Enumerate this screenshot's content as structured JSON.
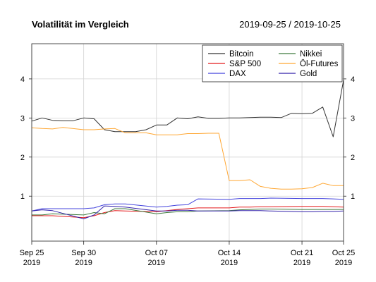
{
  "chart_data": {
    "type": "line",
    "title": "Volatilität im Vergleich",
    "subtitle": "2019-09-25 / 2019-10-25",
    "xlabel": "",
    "ylabel": "",
    "x_range": [
      "2019-09-25",
      "2019-10-25"
    ],
    "ylim": [
      -0.15,
      4.9
    ],
    "y_ticks": [
      1,
      2,
      3,
      4
    ],
    "x_ticks": [
      {
        "date": "2019-09-25",
        "label_line1": "Sep 25",
        "label_line2": "2019"
      },
      {
        "date": "2019-09-30",
        "label_line1": "Sep 30",
        "label_line2": "2019"
      },
      {
        "date": "2019-10-07",
        "label_line1": "Oct 07",
        "label_line2": "2019"
      },
      {
        "date": "2019-10-14",
        "label_line1": "Oct 14",
        "label_line2": "2019"
      },
      {
        "date": "2019-10-21",
        "label_line1": "Oct 21",
        "label_line2": "2019"
      },
      {
        "date": "2019-10-25",
        "label_line1": "Oct 25",
        "label_line2": "2019"
      }
    ],
    "grid": true,
    "legend_position": "top-right",
    "series": [
      {
        "name": "Bitcoin",
        "color": "#333333",
        "points": [
          [
            "2019-09-25",
            2.92
          ],
          [
            "2019-09-26",
            3.0
          ],
          [
            "2019-09-27",
            2.94
          ],
          [
            "2019-09-28",
            2.93
          ],
          [
            "2019-09-29",
            2.93
          ],
          [
            "2019-09-30",
            3.0
          ],
          [
            "2019-10-01",
            2.98
          ],
          [
            "2019-10-02",
            2.7
          ],
          [
            "2019-10-03",
            2.65
          ],
          [
            "2019-10-04",
            2.65
          ],
          [
            "2019-10-05",
            2.65
          ],
          [
            "2019-10-06",
            2.7
          ],
          [
            "2019-10-07",
            2.82
          ],
          [
            "2019-10-08",
            2.82
          ],
          [
            "2019-10-09",
            3.0
          ],
          [
            "2019-10-10",
            2.98
          ],
          [
            "2019-10-11",
            3.03
          ],
          [
            "2019-10-12",
            2.99
          ],
          [
            "2019-10-13",
            2.99
          ],
          [
            "2019-10-14",
            3.0
          ],
          [
            "2019-10-15",
            3.0
          ],
          [
            "2019-10-16",
            3.01
          ],
          [
            "2019-10-17",
            3.02
          ],
          [
            "2019-10-18",
            3.02
          ],
          [
            "2019-10-19",
            3.01
          ],
          [
            "2019-10-20",
            3.12
          ],
          [
            "2019-10-21",
            3.11
          ],
          [
            "2019-10-22",
            3.12
          ],
          [
            "2019-10-23",
            3.28
          ],
          [
            "2019-10-24",
            2.52
          ],
          [
            "2019-10-25",
            3.97
          ]
        ]
      },
      {
        "name": "S&P 500",
        "color": "#e41a1c",
        "points": [
          [
            "2019-09-25",
            0.5
          ],
          [
            "2019-09-26",
            0.5
          ],
          [
            "2019-09-27",
            0.5
          ],
          [
            "2019-09-30",
            0.45
          ],
          [
            "2019-10-01",
            0.5
          ],
          [
            "2019-10-02",
            0.58
          ],
          [
            "2019-10-03",
            0.63
          ],
          [
            "2019-10-04",
            0.62
          ],
          [
            "2019-10-07",
            0.6
          ],
          [
            "2019-10-08",
            0.63
          ],
          [
            "2019-10-09",
            0.66
          ],
          [
            "2019-10-10",
            0.68
          ],
          [
            "2019-10-11",
            0.7
          ],
          [
            "2019-10-14",
            0.7
          ],
          [
            "2019-10-15",
            0.72
          ],
          [
            "2019-10-16",
            0.72
          ],
          [
            "2019-10-17",
            0.73
          ],
          [
            "2019-10-18",
            0.73
          ],
          [
            "2019-10-21",
            0.74
          ],
          [
            "2019-10-22",
            0.74
          ],
          [
            "2019-10-23",
            0.74
          ],
          [
            "2019-10-24",
            0.73
          ],
          [
            "2019-10-25",
            0.72
          ]
        ]
      },
      {
        "name": "DAX",
        "color": "#4444dd",
        "points": [
          [
            "2019-09-25",
            0.62
          ],
          [
            "2019-09-26",
            0.68
          ],
          [
            "2019-09-27",
            0.68
          ],
          [
            "2019-09-30",
            0.68
          ],
          [
            "2019-10-01",
            0.7
          ],
          [
            "2019-10-02",
            0.78
          ],
          [
            "2019-10-03",
            0.8
          ],
          [
            "2019-10-04",
            0.8
          ],
          [
            "2019-10-07",
            0.72
          ],
          [
            "2019-10-08",
            0.74
          ],
          [
            "2019-10-09",
            0.77
          ],
          [
            "2019-10-10",
            0.78
          ],
          [
            "2019-10-11",
            0.93
          ],
          [
            "2019-10-14",
            0.92
          ],
          [
            "2019-10-15",
            0.94
          ],
          [
            "2019-10-16",
            0.94
          ],
          [
            "2019-10-17",
            0.94
          ],
          [
            "2019-10-18",
            0.95
          ],
          [
            "2019-10-21",
            0.94
          ],
          [
            "2019-10-22",
            0.94
          ],
          [
            "2019-10-23",
            0.94
          ],
          [
            "2019-10-24",
            0.93
          ],
          [
            "2019-10-25",
            0.92
          ]
        ]
      },
      {
        "name": "Nikkei",
        "color": "#3d7a3d",
        "points": [
          [
            "2019-09-25",
            0.52
          ],
          [
            "2019-09-26",
            0.52
          ],
          [
            "2019-09-27",
            0.55
          ],
          [
            "2019-09-30",
            0.52
          ],
          [
            "2019-10-01",
            0.58
          ],
          [
            "2019-10-02",
            0.55
          ],
          [
            "2019-10-03",
            0.68
          ],
          [
            "2019-10-04",
            0.68
          ],
          [
            "2019-10-07",
            0.55
          ],
          [
            "2019-10-08",
            0.58
          ],
          [
            "2019-10-09",
            0.6
          ],
          [
            "2019-10-10",
            0.6
          ],
          [
            "2019-10-11",
            0.62
          ],
          [
            "2019-10-14",
            0.63
          ],
          [
            "2019-10-15",
            0.65
          ],
          [
            "2019-10-16",
            0.66
          ],
          [
            "2019-10-17",
            0.67
          ],
          [
            "2019-10-18",
            0.67
          ],
          [
            "2019-10-21",
            0.66
          ],
          [
            "2019-10-22",
            0.66
          ],
          [
            "2019-10-23",
            0.66
          ],
          [
            "2019-10-24",
            0.66
          ],
          [
            "2019-10-25",
            0.66
          ]
        ]
      },
      {
        "name": "Öl-Futures",
        "color": "#ffa733",
        "points": [
          [
            "2019-09-25",
            2.75
          ],
          [
            "2019-09-26",
            2.73
          ],
          [
            "2019-09-27",
            2.72
          ],
          [
            "2019-09-28",
            2.76
          ],
          [
            "2019-09-30",
            2.7
          ],
          [
            "2019-10-01",
            2.7
          ],
          [
            "2019-10-02",
            2.72
          ],
          [
            "2019-10-03",
            2.73
          ],
          [
            "2019-10-04",
            2.62
          ],
          [
            "2019-10-05",
            2.62
          ],
          [
            "2019-10-06",
            2.62
          ],
          [
            "2019-10-07",
            2.57
          ],
          [
            "2019-10-08",
            2.57
          ],
          [
            "2019-10-09",
            2.57
          ],
          [
            "2019-10-10",
            2.6
          ],
          [
            "2019-10-11",
            2.6
          ],
          [
            "2019-10-12",
            2.61
          ],
          [
            "2019-10-13",
            2.61
          ],
          [
            "2019-10-14",
            1.4
          ],
          [
            "2019-10-15",
            1.4
          ],
          [
            "2019-10-16",
            1.42
          ],
          [
            "2019-10-17",
            1.25
          ],
          [
            "2019-10-18",
            1.2
          ],
          [
            "2019-10-19",
            1.18
          ],
          [
            "2019-10-20",
            1.18
          ],
          [
            "2019-10-21",
            1.19
          ],
          [
            "2019-10-22",
            1.22
          ],
          [
            "2019-10-23",
            1.33
          ],
          [
            "2019-10-24",
            1.27
          ],
          [
            "2019-10-25",
            1.27
          ]
        ]
      },
      {
        "name": "Gold",
        "color": "#3322aa",
        "points": [
          [
            "2019-09-25",
            0.62
          ],
          [
            "2019-09-26",
            0.65
          ],
          [
            "2019-09-27",
            0.63
          ],
          [
            "2019-09-30",
            0.42
          ],
          [
            "2019-10-01",
            0.52
          ],
          [
            "2019-10-02",
            0.75
          ],
          [
            "2019-10-03",
            0.74
          ],
          [
            "2019-10-04",
            0.72
          ],
          [
            "2019-10-07",
            0.62
          ],
          [
            "2019-10-08",
            0.62
          ],
          [
            "2019-10-09",
            0.64
          ],
          [
            "2019-10-10",
            0.64
          ],
          [
            "2019-10-11",
            0.62
          ],
          [
            "2019-10-14",
            0.62
          ],
          [
            "2019-10-15",
            0.63
          ],
          [
            "2019-10-16",
            0.63
          ],
          [
            "2019-10-17",
            0.63
          ],
          [
            "2019-10-18",
            0.62
          ],
          [
            "2019-10-21",
            0.6
          ],
          [
            "2019-10-22",
            0.6
          ],
          [
            "2019-10-23",
            0.61
          ],
          [
            "2019-10-24",
            0.61
          ],
          [
            "2019-10-25",
            0.62
          ]
        ]
      }
    ]
  }
}
